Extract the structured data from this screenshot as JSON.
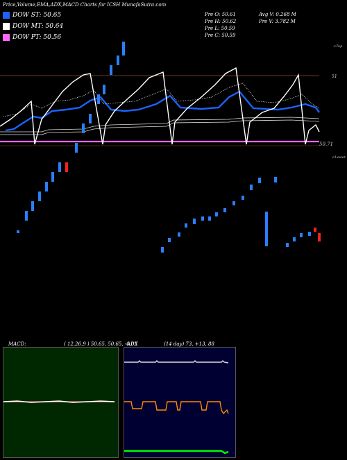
{
  "header": {
    "title": "Price,Volume,EMA,ADX,MACD Charts for ICSH MunafaSutra.com"
  },
  "legend": [
    {
      "label": "DOW ST: 50.65",
      "color": "#1a64ff"
    },
    {
      "label": "DOW MT: 50.64",
      "color": "#ffffff"
    },
    {
      "label": "DOW PT: 50.56",
      "color": "#ff66ff"
    }
  ],
  "stats": {
    "col1": [
      "Pre   O: 50.61",
      "Pre   H: 50.62",
      "Pre   L: 50.59",
      "Pre   C: 50.59"
    ],
    "col2": [
      "Avg V: 0.268  M",
      "Pre   V: 3.782  M"
    ]
  },
  "labels": {
    "top": "<Top",
    "lower": "<Lower",
    "price_right_1": "51",
    "price_right_2": "50.71"
  },
  "macd": {
    "label": "MACD:",
    "params": "( 12,26,9 ) 50.65,  50.65,  -0.02"
  },
  "adx": {
    "label": "ADX",
    "params": "(14  day) 73,  +13,  88"
  },
  "colors": {
    "ema_short": "#1a64ff",
    "ema_mid": "#ffffff",
    "ema_long": "#ff66ff",
    "candle_up": "#2a7fff",
    "candle_down": "#ff2020",
    "macd_bg": "#002800",
    "adx_bg": "#000033",
    "adx_plus": "#ff8c00",
    "adx_minus": "#00ff00"
  },
  "chart_data": [
    {
      "type": "line",
      "name": "price-ema",
      "series": [
        {
          "name": "DOW ST",
          "values": [
            50.6,
            50.61,
            50.62,
            50.63,
            50.64,
            50.65,
            50.66,
            50.67,
            50.68,
            50.69,
            50.68,
            50.67,
            50.66,
            50.65,
            50.66,
            50.67,
            50.68,
            50.69,
            50.7,
            50.69,
            50.68,
            50.67,
            50.66,
            50.65,
            50.66,
            50.67,
            50.68,
            50.69,
            50.68,
            50.67,
            50.66,
            50.65,
            50.65
          ]
        },
        {
          "name": "DOW MT",
          "values": [
            50.62,
            50.63,
            50.64,
            50.66,
            50.68,
            50.7,
            50.72,
            50.74,
            50.6,
            50.58,
            50.62,
            50.66,
            50.7,
            50.74,
            50.62,
            50.6,
            50.64,
            50.68,
            50.72,
            50.75,
            50.61,
            50.6,
            50.64,
            50.68,
            50.72,
            50.75,
            50.6,
            50.62,
            50.66,
            50.7,
            50.74,
            50.62,
            50.64
          ]
        },
        {
          "name": "DOW PT",
          "values": [
            50.56,
            50.56,
            50.56,
            50.56,
            50.56,
            50.56,
            50.56,
            50.56,
            50.56,
            50.56,
            50.56,
            50.56,
            50.56,
            50.56,
            50.56,
            50.56,
            50.56,
            50.56,
            50.56,
            50.56,
            50.56,
            50.56,
            50.56,
            50.56,
            50.56,
            50.56,
            50.56,
            50.56,
            50.56,
            50.56,
            50.56,
            50.56,
            50.56
          ]
        }
      ]
    },
    {
      "type": "bar",
      "name": "candles",
      "candles": [
        {
          "o": 50.38,
          "c": 50.38,
          "d": "up"
        },
        {
          "o": 50.39,
          "c": 50.4,
          "d": "up"
        },
        {
          "o": 50.4,
          "c": 50.41,
          "d": "up"
        },
        {
          "o": 50.41,
          "c": 50.42,
          "d": "up"
        },
        {
          "o": 50.42,
          "c": 50.43,
          "d": "up"
        },
        {
          "o": 50.43,
          "c": 50.44,
          "d": "up"
        },
        {
          "o": 50.44,
          "c": 50.45,
          "d": "up"
        },
        {
          "o": 50.44,
          "c": 50.45,
          "d": "down"
        },
        {
          "o": 50.46,
          "c": 50.47,
          "d": "up"
        },
        {
          "o": 50.48,
          "c": 50.49,
          "d": "up"
        },
        {
          "o": 50.49,
          "c": 50.5,
          "d": "up"
        },
        {
          "o": 50.51,
          "c": 50.52,
          "d": "up"
        },
        {
          "o": 50.52,
          "c": 50.53,
          "d": "up"
        },
        {
          "o": 50.54,
          "c": 50.55,
          "d": "up"
        },
        {
          "o": 50.55,
          "c": 50.56,
          "d": "up"
        },
        {
          "o": 50.56,
          "c": 50.58,
          "d": "up"
        },
        {
          "o": 50.58,
          "c": 50.6,
          "d": "up"
        },
        {
          "o": 50.6,
          "c": 50.61,
          "d": "up"
        },
        {
          "o": 50.6,
          "c": 50.61,
          "d": "down"
        },
        {
          "o": 50.59,
          "c": 50.6,
          "d": "up"
        }
      ]
    }
  ]
}
